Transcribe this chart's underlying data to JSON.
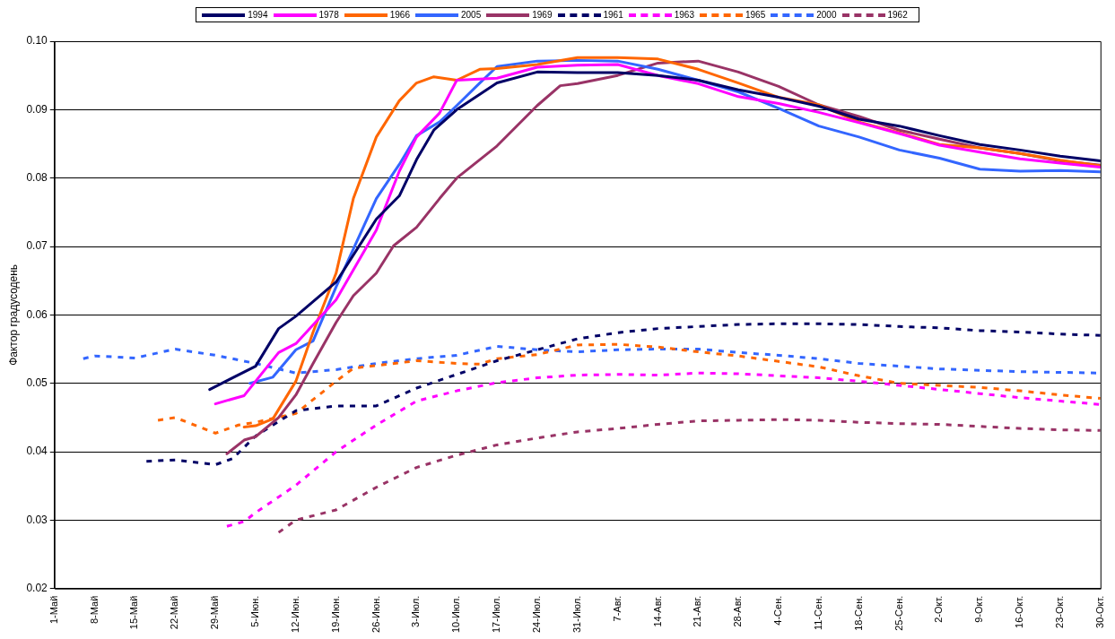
{
  "chart_data": {
    "type": "line",
    "ylabel": "Фактор градусодень",
    "legend": "top",
    "grid": "y",
    "marker": "none",
    "xlim": [
      "--05-01",
      "--10-30"
    ],
    "xticks": [
      {
        "value": "--05-01",
        "label": "1-Май"
      },
      {
        "value": "--05-08",
        "label": "8-Май"
      },
      {
        "value": "--05-15",
        "label": "15-Май"
      },
      {
        "value": "--05-22",
        "label": "22-Май"
      },
      {
        "value": "--05-29",
        "label": "29-Май"
      },
      {
        "value": "--06-05",
        "label": "5-Июн."
      },
      {
        "value": "--06-12",
        "label": "12-Июн."
      },
      {
        "value": "--06-19",
        "label": "19-Июн."
      },
      {
        "value": "--06-26",
        "label": "26-Июн."
      },
      {
        "value": "--07-03",
        "label": "3-Июл."
      },
      {
        "value": "--07-10",
        "label": "10-Июл."
      },
      {
        "value": "--07-17",
        "label": "17-Июл."
      },
      {
        "value": "--07-24",
        "label": "24-Июл."
      },
      {
        "value": "--07-31",
        "label": "31-Июл."
      },
      {
        "value": "--08-07",
        "label": "7-Авг."
      },
      {
        "value": "--08-14",
        "label": "14-Авг."
      },
      {
        "value": "--08-21",
        "label": "21-Авг."
      },
      {
        "value": "--08-28",
        "label": "28-Авг."
      },
      {
        "value": "--09-04",
        "label": "4-Сен."
      },
      {
        "value": "--09-11",
        "label": "11-Сен."
      },
      {
        "value": "--09-18",
        "label": "18-Сен."
      },
      {
        "value": "--09-25",
        "label": "25-Сен."
      },
      {
        "value": "--10-02",
        "label": "2-Окт."
      },
      {
        "value": "--10-09",
        "label": "9-Окт."
      },
      {
        "value": "--10-16",
        "label": "16-Окт."
      },
      {
        "value": "--10-23",
        "label": "23-Окт."
      },
      {
        "value": "--10-30",
        "label": "30-Окт."
      }
    ],
    "ylim": [
      0.02,
      0.1
    ],
    "yticks": [
      0.02,
      0.03,
      0.04,
      0.05,
      0.06,
      0.07,
      0.08,
      0.09,
      {
        "value": 0.1,
        "label": "0.10"
      }
    ],
    "series": [
      {
        "name": "1994",
        "color": "#000066",
        "line_style": "solid",
        "x": [
          "--05-28",
          "--06-05",
          "--06-09",
          "--06-12",
          "--06-19",
          "--06-26",
          "--06-30",
          "--07-03",
          "--07-06",
          "--07-10",
          "--07-17",
          "--07-24",
          "--07-31",
          "--08-07",
          "--08-14",
          "--08-21",
          "--08-28",
          "--09-04",
          "--09-11",
          "--09-18",
          "--09-25",
          "--10-02",
          "--10-09",
          "--10-16",
          "--10-23",
          "--10-30"
        ],
        "values": [
          0.0491,
          0.0525,
          0.058,
          0.0598,
          0.0648,
          0.074,
          0.0774,
          0.0827,
          0.087,
          0.09,
          0.0939,
          0.0955,
          0.0954,
          0.0954,
          0.095,
          0.0943,
          0.0929,
          0.0918,
          0.0905,
          0.0886,
          0.0876,
          0.0862,
          0.0849,
          0.0841,
          0.0832,
          0.0825
        ]
      },
      {
        "name": "1978",
        "color": "#ff00ff",
        "line_style": "solid",
        "x": [
          "--05-29",
          "--06-03",
          "--06-05",
          "--06-09",
          "--06-12",
          "--06-19",
          "--06-26",
          "--06-30",
          "--07-03",
          "--07-07",
          "--07-10",
          "--07-17",
          "--07-24",
          "--07-31",
          "--08-07",
          "--08-14",
          "--08-21",
          "--08-28",
          "--09-04",
          "--09-11",
          "--09-18",
          "--09-25",
          "--10-02",
          "--10-09",
          "--10-16",
          "--10-23",
          "--10-30"
        ],
        "values": [
          0.047,
          0.0482,
          0.0503,
          0.0545,
          0.0558,
          0.0622,
          0.0724,
          0.081,
          0.086,
          0.0895,
          0.0943,
          0.0946,
          0.0962,
          0.0965,
          0.0966,
          0.095,
          0.0938,
          0.0919,
          0.0909,
          0.0896,
          0.0881,
          0.0865,
          0.0848,
          0.0838,
          0.0828,
          0.0822,
          0.0816
        ]
      },
      {
        "name": "1966",
        "color": "#ff6600",
        "line_style": "solid",
        "x": [
          "--06-03",
          "--06-05",
          "--06-08",
          "--06-12",
          "--06-15",
          "--06-19",
          "--06-22",
          "--06-26",
          "--06-30",
          "--07-03",
          "--07-06",
          "--07-10",
          "--07-14",
          "--07-17",
          "--07-24",
          "--07-31",
          "--08-07",
          "--08-14",
          "--08-21",
          "--08-28",
          "--09-04",
          "--09-11",
          "--09-18",
          "--09-25",
          "--10-02",
          "--10-09",
          "--10-16",
          "--10-23",
          "--10-30"
        ],
        "values": [
          0.0436,
          0.0438,
          0.0448,
          0.0503,
          0.0575,
          0.0661,
          0.077,
          0.086,
          0.0913,
          0.0939,
          0.0948,
          0.0943,
          0.0959,
          0.096,
          0.0966,
          0.0976,
          0.0976,
          0.0974,
          0.0959,
          0.0939,
          0.0918,
          0.0907,
          0.0882,
          0.0866,
          0.0849,
          0.0844,
          0.0836,
          0.0826,
          0.0818
        ]
      },
      {
        "name": "2005",
        "color": "#3366ff",
        "line_style": "solid",
        "x": [
          "--06-04",
          "--06-08",
          "--06-12",
          "--06-15",
          "--06-19",
          "--06-26",
          "--06-30",
          "--07-03",
          "--07-07",
          "--07-10",
          "--07-14",
          "--07-17",
          "--07-24",
          "--07-31",
          "--08-07",
          "--08-14",
          "--08-21",
          "--08-28",
          "--09-04",
          "--09-11",
          "--09-18",
          "--09-25",
          "--10-02",
          "--10-09",
          "--10-16",
          "--10-23",
          "--10-30"
        ],
        "values": [
          0.05,
          0.0509,
          0.0549,
          0.0562,
          0.0641,
          0.077,
          0.082,
          0.0862,
          0.0882,
          0.0906,
          0.0939,
          0.0963,
          0.0971,
          0.0972,
          0.0971,
          0.0959,
          0.0943,
          0.0926,
          0.0902,
          0.0876,
          0.086,
          0.0841,
          0.0829,
          0.0813,
          0.081,
          0.0811,
          0.0809
        ]
      },
      {
        "name": "1969",
        "color": "#993366",
        "line_style": "solid",
        "x": [
          "--05-31",
          "--06-03",
          "--06-05",
          "--06-09",
          "--06-12",
          "--06-15",
          "--06-19",
          "--06-22",
          "--06-26",
          "--06-29",
          "--07-03",
          "--07-07",
          "--07-10",
          "--07-17",
          "--07-24",
          "--07-28",
          "--07-31",
          "--08-07",
          "--08-14",
          "--08-21",
          "--08-28",
          "--09-04",
          "--09-11",
          "--09-18",
          "--09-25",
          "--10-02",
          "--10-09",
          "--10-16",
          "--10-23",
          "--10-30"
        ],
        "values": [
          0.0397,
          0.0417,
          0.0422,
          0.045,
          0.0483,
          0.0529,
          0.0589,
          0.0628,
          0.0661,
          0.0701,
          0.0728,
          0.077,
          0.08,
          0.0847,
          0.0906,
          0.0935,
          0.0938,
          0.095,
          0.0968,
          0.0971,
          0.0955,
          0.0934,
          0.0907,
          0.089,
          0.087,
          0.0857,
          0.0844,
          0.0836,
          0.0825,
          0.0819
        ]
      },
      {
        "name": "1961",
        "color": "#000066",
        "line_style": "dashed",
        "x": [
          "--05-17",
          "--05-22",
          "--05-29",
          "--06-01",
          "--06-05",
          "--06-12",
          "--06-19",
          "--06-26",
          "--07-03",
          "--07-10",
          "--07-17",
          "--07-24",
          "--07-31",
          "--08-07",
          "--08-14",
          "--08-21",
          "--08-28",
          "--09-04",
          "--09-11",
          "--09-18",
          "--09-25",
          "--10-02",
          "--10-09",
          "--10-16",
          "--10-23",
          "--10-30"
        ],
        "values": [
          0.0386,
          0.0388,
          0.0381,
          0.039,
          0.0423,
          0.046,
          0.0467,
          0.0467,
          0.0493,
          0.0513,
          0.0533,
          0.0549,
          0.0565,
          0.0574,
          0.058,
          0.0583,
          0.0586,
          0.0587,
          0.0587,
          0.0586,
          0.0583,
          0.0581,
          0.0577,
          0.0575,
          0.0572,
          0.057
        ]
      },
      {
        "name": "1963",
        "color": "#ff00ff",
        "line_style": "dashed",
        "x": [
          "--05-31",
          "--06-03",
          "--06-05",
          "--06-12",
          "--06-19",
          "--06-26",
          "--07-03",
          "--07-10",
          "--07-17",
          "--07-24",
          "--07-31",
          "--08-07",
          "--08-14",
          "--08-21",
          "--08-28",
          "--09-04",
          "--09-11",
          "--09-18",
          "--09-25",
          "--10-02",
          "--10-09",
          "--10-16",
          "--10-23",
          "--10-30"
        ],
        "values": [
          0.0291,
          0.0298,
          0.0311,
          0.0351,
          0.04,
          0.0439,
          0.0474,
          0.0489,
          0.0501,
          0.0508,
          0.0512,
          0.0513,
          0.0512,
          0.0515,
          0.0514,
          0.0511,
          0.0508,
          0.0503,
          0.0497,
          0.0491,
          0.0485,
          0.0479,
          0.0474,
          0.0469
        ]
      },
      {
        "name": "1965",
        "color": "#ff6600",
        "line_style": "dashed",
        "x": [
          "--05-19",
          "--05-22",
          "--05-29",
          "--06-02",
          "--06-05",
          "--06-12",
          "--06-19",
          "--06-22",
          "--06-26",
          "--07-03",
          "--07-10",
          "--07-14",
          "--07-17",
          "--07-24",
          "--07-31",
          "--08-07",
          "--08-14",
          "--08-21",
          "--08-28",
          "--09-04",
          "--09-11",
          "--09-18",
          "--09-25",
          "--10-02",
          "--10-09",
          "--10-16",
          "--10-23",
          "--10-30"
        ],
        "values": [
          0.0446,
          0.045,
          0.0427,
          0.0439,
          0.0443,
          0.0456,
          0.0503,
          0.0522,
          0.0526,
          0.0533,
          0.0529,
          0.0528,
          0.0536,
          0.0542,
          0.0556,
          0.0557,
          0.0553,
          0.0546,
          0.054,
          0.0532,
          0.0524,
          0.0511,
          0.05,
          0.0497,
          0.0494,
          0.0489,
          0.0483,
          0.0478
        ]
      },
      {
        "name": "2000",
        "color": "#3366ff",
        "line_style": "dashed",
        "x": [
          "--05-06",
          "--05-08",
          "--05-15",
          "--05-22",
          "--05-29",
          "--06-05",
          "--06-12",
          "--06-19",
          "--06-26",
          "--07-03",
          "--07-10",
          "--07-17",
          "--07-24",
          "--07-31",
          "--08-07",
          "--08-14",
          "--08-21",
          "--08-28",
          "--09-04",
          "--09-11",
          "--09-18",
          "--09-25",
          "--10-02",
          "--10-09",
          "--10-16",
          "--10-23",
          "--10-30"
        ],
        "values": [
          0.0536,
          0.054,
          0.0537,
          0.055,
          0.0541,
          0.0529,
          0.0515,
          0.052,
          0.0529,
          0.0536,
          0.0541,
          0.0554,
          0.0549,
          0.0546,
          0.0549,
          0.055,
          0.055,
          0.0545,
          0.0541,
          0.0536,
          0.0529,
          0.0525,
          0.0521,
          0.0519,
          0.0517,
          0.0516,
          0.0515
        ]
      },
      {
        "name": "1962",
        "color": "#993366",
        "line_style": "dashed",
        "x": [
          "--06-09",
          "--06-12",
          "--06-19",
          "--06-26",
          "--07-03",
          "--07-10",
          "--07-17",
          "--07-24",
          "--07-31",
          "--08-07",
          "--08-14",
          "--08-21",
          "--08-28",
          "--09-04",
          "--09-11",
          "--09-18",
          "--09-25",
          "--10-02",
          "--10-09",
          "--10-16",
          "--10-23",
          "--10-30"
        ],
        "values": [
          0.0282,
          0.03,
          0.0315,
          0.0348,
          0.0377,
          0.0395,
          0.041,
          0.042,
          0.0429,
          0.0434,
          0.044,
          0.0445,
          0.0446,
          0.0447,
          0.0446,
          0.0443,
          0.0441,
          0.044,
          0.0437,
          0.0434,
          0.0432,
          0.0431
        ]
      }
    ]
  }
}
